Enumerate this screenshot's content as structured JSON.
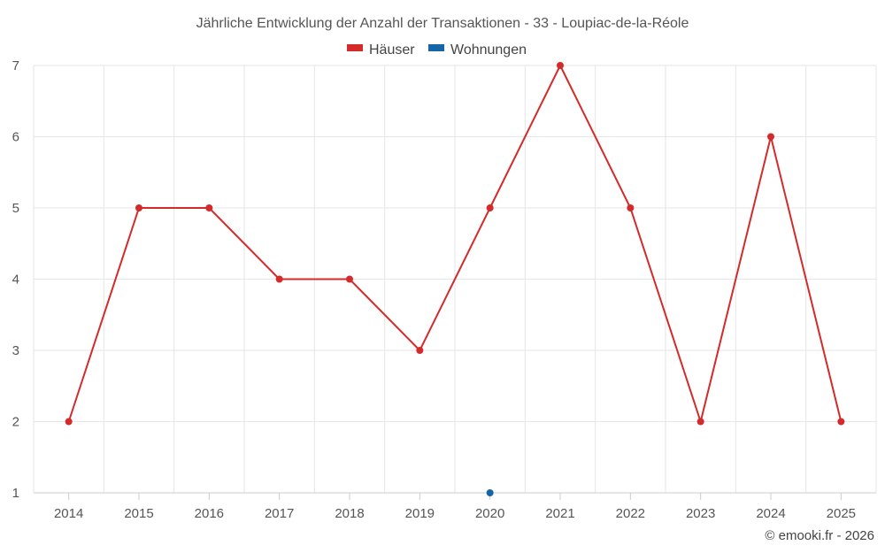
{
  "chart_data": {
    "type": "line",
    "title": "Jährliche Entwicklung der Anzahl der Transaktionen - 33 - Loupiac-de-la-Réole",
    "categories": [
      "2014",
      "2015",
      "2016",
      "2017",
      "2018",
      "2019",
      "2020",
      "2021",
      "2022",
      "2023",
      "2024",
      "2025"
    ],
    "series": [
      {
        "name": "Häuser",
        "color": "#d42a2a",
        "values": [
          2,
          5,
          5,
          4,
          4,
          3,
          5,
          7,
          5,
          2,
          6,
          2
        ]
      },
      {
        "name": "Wohnungen",
        "color": "#1565a8",
        "values": [
          null,
          null,
          null,
          null,
          null,
          null,
          1,
          null,
          null,
          null,
          null,
          null
        ]
      }
    ],
    "xlabel": "",
    "ylabel": "",
    "ylim": [
      1,
      7
    ],
    "yticks": [
      "1",
      "2",
      "3",
      "4",
      "5",
      "6",
      "7"
    ],
    "grid": true,
    "legend_position": "top-center"
  },
  "credit": "© emooki.fr - 2026"
}
